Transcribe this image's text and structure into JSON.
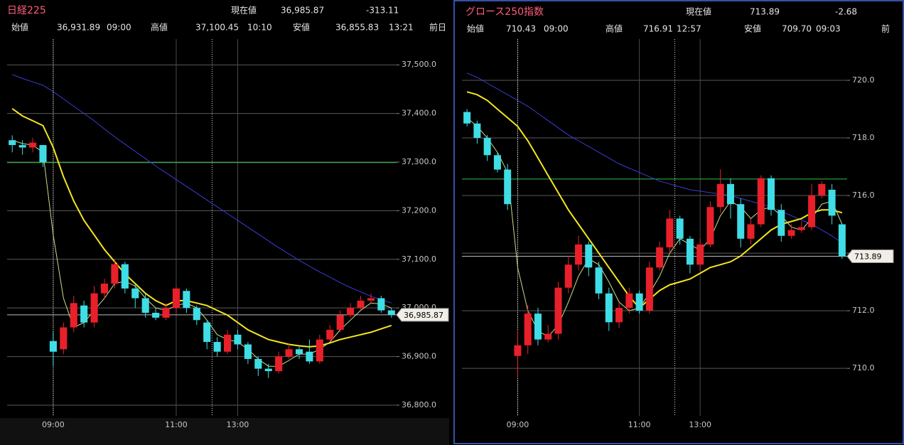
{
  "chart_data": [
    {
      "type": "candlestick",
      "title": "日経225",
      "quote": {
        "label": "現在値",
        "price": "36,985.87",
        "change": "-313.11"
      },
      "stats": [
        {
          "label": "始値",
          "value": "36,931.89",
          "time": "09:00"
        },
        {
          "label": "高値",
          "value": "37,100.45",
          "time": "10:10"
        },
        {
          "label": "安値",
          "value": "36,855.83",
          "time": "13:21"
        },
        {
          "label": "前日"
        }
      ],
      "categories": [
        null,
        null,
        null,
        null,
        "09:00",
        null,
        null,
        null,
        null,
        null,
        null,
        null,
        null,
        null,
        null,
        null,
        "11:00",
        null,
        null,
        null,
        null,
        null,
        "13:00",
        null,
        null,
        null,
        null,
        null,
        null,
        null,
        null,
        null,
        null,
        null,
        null,
        null,
        null,
        null
      ],
      "open": [
        37345,
        37335,
        37330,
        37335,
        36931.89,
        36915,
        36960,
        37005,
        36970,
        37030,
        37050,
        37090,
        37040,
        37020,
        36990,
        36980,
        37000,
        37035,
        37000,
        36970,
        36930,
        36910,
        36945,
        36925,
        36895,
        36875,
        36870,
        36900,
        36915,
        36910,
        36890,
        36935,
        36955,
        36985,
        37000,
        37015,
        37020,
        36995
      ],
      "high": [
        37355,
        37345,
        37350,
        37335,
        36950,
        36970,
        37025,
        37015,
        37045,
        37060,
        37100.45,
        37095,
        37050,
        37030,
        37000,
        37010,
        37045,
        37040,
        37005,
        36975,
        36940,
        36955,
        36955,
        36930,
        36900,
        36885,
        36910,
        36925,
        36920,
        36935,
        36945,
        36965,
        36995,
        37010,
        37025,
        37030,
        37025,
        37000
      ],
      "low": [
        37320,
        37315,
        37320,
        37290,
        36880,
        36905,
        36950,
        36960,
        36960,
        37020,
        37040,
        37030,
        37000,
        36980,
        36975,
        36975,
        36990,
        36990,
        36965,
        36915,
        36900,
        36905,
        36915,
        36885,
        36860,
        36855.83,
        36865,
        36895,
        36895,
        36885,
        36885,
        36930,
        36950,
        36980,
        36995,
        37010,
        36990,
        36980
      ],
      "close": [
        37335,
        37330,
        37340,
        37300,
        36910,
        36960,
        37010,
        36970,
        37030,
        37050,
        37090,
        37040,
        37020,
        36990,
        36980,
        37000,
        37040,
        37000,
        36975,
        36930,
        36910,
        36945,
        36925,
        36895,
        36875,
        36870,
        36900,
        36915,
        36905,
        36890,
        36935,
        36955,
        36985,
        37000,
        37015,
        37020,
        36995,
        36985.87
      ],
      "up_color": "#e8202a",
      "down_color": "#3fdde6",
      "lines": [
        {
          "color": "#3b3bd6",
          "values": [
            37480,
            37472,
            37465,
            37458,
            37445,
            37430,
            37415,
            37400,
            37385,
            37368,
            37352,
            37337,
            37322,
            37307,
            37292,
            37278,
            37264,
            37250,
            37236,
            37222,
            37208,
            37194,
            37180,
            37166,
            37152,
            37138,
            37124,
            37111,
            37098,
            37086,
            37074,
            37063,
            37052,
            37042,
            37033,
            37024,
            37017,
            37010
          ]
        },
        {
          "color": "#f5e61e",
          "values": [
            37410,
            37395,
            37385,
            37375,
            37330,
            37270,
            37220,
            37180,
            37150,
            37120,
            37095,
            37070,
            37050,
            37030,
            37015,
            37005,
            37015,
            37015,
            37010,
            37005,
            36995,
            36985,
            36970,
            36955,
            36945,
            36935,
            36930,
            36925,
            36922,
            36920,
            36922,
            36928,
            36935,
            36940,
            36945,
            36950,
            36957,
            36964
          ]
        },
        {
          "color": "#c8e08a",
          "values": [
            37345,
            37338,
            37335,
            37320,
            37150,
            37020,
            36960,
            36970,
            36995,
            37020,
            37050,
            37055,
            37045,
            37020,
            37000,
            36995,
            37005,
            37010,
            37000,
            36975,
            36945,
            36935,
            36930,
            36915,
            36895,
            36880,
            36880,
            36892,
            36905,
            36905,
            36915,
            36930,
            36955,
            36975,
            36995,
            37010,
            37008,
            37000
          ]
        }
      ],
      "ref_line": {
        "value": 37298.98,
        "color": "#2fbf3f"
      },
      "last": {
        "value": 36985.87,
        "label": "36,985.87"
      },
      "ylim": [
        36778,
        37553
      ],
      "yticks": [
        {
          "value": 36800,
          "label": "36,800.0"
        },
        {
          "value": 36900,
          "label": "36,900.0"
        },
        {
          "value": 37000,
          "label": "37,000.0"
        },
        {
          "value": 37100,
          "label": "37,100.0"
        },
        {
          "value": 37200,
          "label": "37,200.0"
        },
        {
          "value": 37300,
          "label": "37,300.0"
        },
        {
          "value": 37400,
          "label": "37,400.0"
        },
        {
          "value": 37500,
          "label": "37,500.0"
        }
      ],
      "grid": true
    },
    {
      "type": "candlestick",
      "title": "グロース250指数",
      "quote": {
        "label": "現在値",
        "price": "713.89",
        "change": "-2.68"
      },
      "stats": [
        {
          "label": "始値",
          "value": "710.43",
          "time": "09:00"
        },
        {
          "label": "高値",
          "value": "716.91",
          "time": "12:57"
        },
        {
          "label": "安値",
          "value": "709.70",
          "time": "09:03"
        },
        {
          "label": "前"
        }
      ],
      "categories": [
        null,
        null,
        null,
        null,
        null,
        "09:00",
        null,
        null,
        null,
        null,
        null,
        null,
        null,
        null,
        null,
        null,
        null,
        "11:00",
        null,
        null,
        null,
        null,
        null,
        "13:00",
        null,
        null,
        null,
        null,
        null,
        null,
        null,
        null,
        null,
        null,
        null,
        null,
        null,
        null
      ],
      "open": [
        718.9,
        718.5,
        718.0,
        717.4,
        716.9,
        710.43,
        710.8,
        711.9,
        711.0,
        711.2,
        712.8,
        713.6,
        714.3,
        713.5,
        712.6,
        711.6,
        712.1,
        712.6,
        712.0,
        713.5,
        714.2,
        715.2,
        714.5,
        713.6,
        714.3,
        715.6,
        716.4,
        715.7,
        714.5,
        715.0,
        716.6,
        715.5,
        714.6,
        714.8,
        714.9,
        716.0,
        716.2,
        715.0
      ],
      "high": [
        719.0,
        718.6,
        718.1,
        717.5,
        717.1,
        711.3,
        712.2,
        712.1,
        711.5,
        713.0,
        713.9,
        714.6,
        714.4,
        713.7,
        712.8,
        712.3,
        712.8,
        712.7,
        713.7,
        714.4,
        715.5,
        715.3,
        714.6,
        714.5,
        715.8,
        716.91,
        716.6,
        715.9,
        715.2,
        716.7,
        716.7,
        715.7,
        715.0,
        715.1,
        716.4,
        716.5,
        716.4,
        715.0
      ],
      "low": [
        718.4,
        717.8,
        717.2,
        716.8,
        715.5,
        709.7,
        710.5,
        710.8,
        710.9,
        711.0,
        712.6,
        713.4,
        713.2,
        712.4,
        711.3,
        711.4,
        711.9,
        711.9,
        711.9,
        713.4,
        714.0,
        714.3,
        713.3,
        713.4,
        714.2,
        715.4,
        715.2,
        714.2,
        714.3,
        714.9,
        715.3,
        714.4,
        714.5,
        714.7,
        714.8,
        715.9,
        715.0,
        713.8
      ],
      "close": [
        718.5,
        718.0,
        717.4,
        716.9,
        715.7,
        710.8,
        711.9,
        711.0,
        711.2,
        712.8,
        713.6,
        714.3,
        713.5,
        712.6,
        711.6,
        712.1,
        712.6,
        712.0,
        713.5,
        714.2,
        715.2,
        714.5,
        713.6,
        714.3,
        715.6,
        716.4,
        715.7,
        714.5,
        715.0,
        716.6,
        715.5,
        714.6,
        714.8,
        714.9,
        716.0,
        716.4,
        715.3,
        713.89
      ],
      "up_color": "#e8202a",
      "down_color": "#3fdde6",
      "lines": [
        {
          "color": "#3b3bd6",
          "values": [
            720.25,
            720.1,
            719.9,
            719.7,
            719.5,
            719.3,
            719.1,
            718.85,
            718.6,
            718.35,
            718.1,
            717.9,
            717.7,
            717.5,
            717.3,
            717.1,
            716.95,
            716.8,
            716.65,
            716.5,
            716.4,
            716.3,
            716.2,
            716.15,
            716.1,
            716.05,
            716.0,
            715.9,
            715.8,
            715.7,
            715.6,
            715.45,
            715.3,
            715.15,
            715.0,
            714.8,
            714.6,
            714.35
          ]
        },
        {
          "color": "#f5e61e",
          "values": [
            719.6,
            719.5,
            719.3,
            719.0,
            718.7,
            718.4,
            717.9,
            717.3,
            716.7,
            716.1,
            715.5,
            715.0,
            714.5,
            714.0,
            713.5,
            713.0,
            712.5,
            712.1,
            712.4,
            712.7,
            712.9,
            713.0,
            713.1,
            713.3,
            713.5,
            713.6,
            713.7,
            713.9,
            714.2,
            714.5,
            714.8,
            715.0,
            715.1,
            715.2,
            715.4,
            715.5,
            715.5,
            715.4
          ]
        },
        {
          "color": "#c8e08a",
          "values": [
            718.7,
            718.4,
            718.0,
            717.5,
            716.8,
            713.5,
            712.0,
            711.3,
            711.1,
            711.5,
            712.3,
            713.2,
            713.8,
            713.6,
            713.0,
            712.3,
            712.0,
            712.1,
            712.6,
            713.2,
            714.0,
            714.5,
            714.3,
            714.1,
            714.5,
            715.3,
            715.8,
            715.6,
            715.2,
            715.5,
            715.6,
            715.3,
            714.9,
            714.8,
            715.2,
            715.7,
            715.8,
            715.0
          ]
        }
      ],
      "ref_line": {
        "value": 716.57,
        "color": "#2fbf3f"
      },
      "last": {
        "value": 713.89,
        "label": "713.89"
      },
      "ylim": [
        708.35,
        721.43
      ],
      "yticks": [
        {
          "value": 710,
          "label": "710.0"
        },
        {
          "value": 712,
          "label": "712.0"
        },
        {
          "value": 714,
          "label": "714.0"
        },
        {
          "value": 716,
          "label": "716.0"
        },
        {
          "value": 718,
          "label": "718.0"
        },
        {
          "value": 720,
          "label": "720.0"
        }
      ],
      "grid": true
    }
  ]
}
